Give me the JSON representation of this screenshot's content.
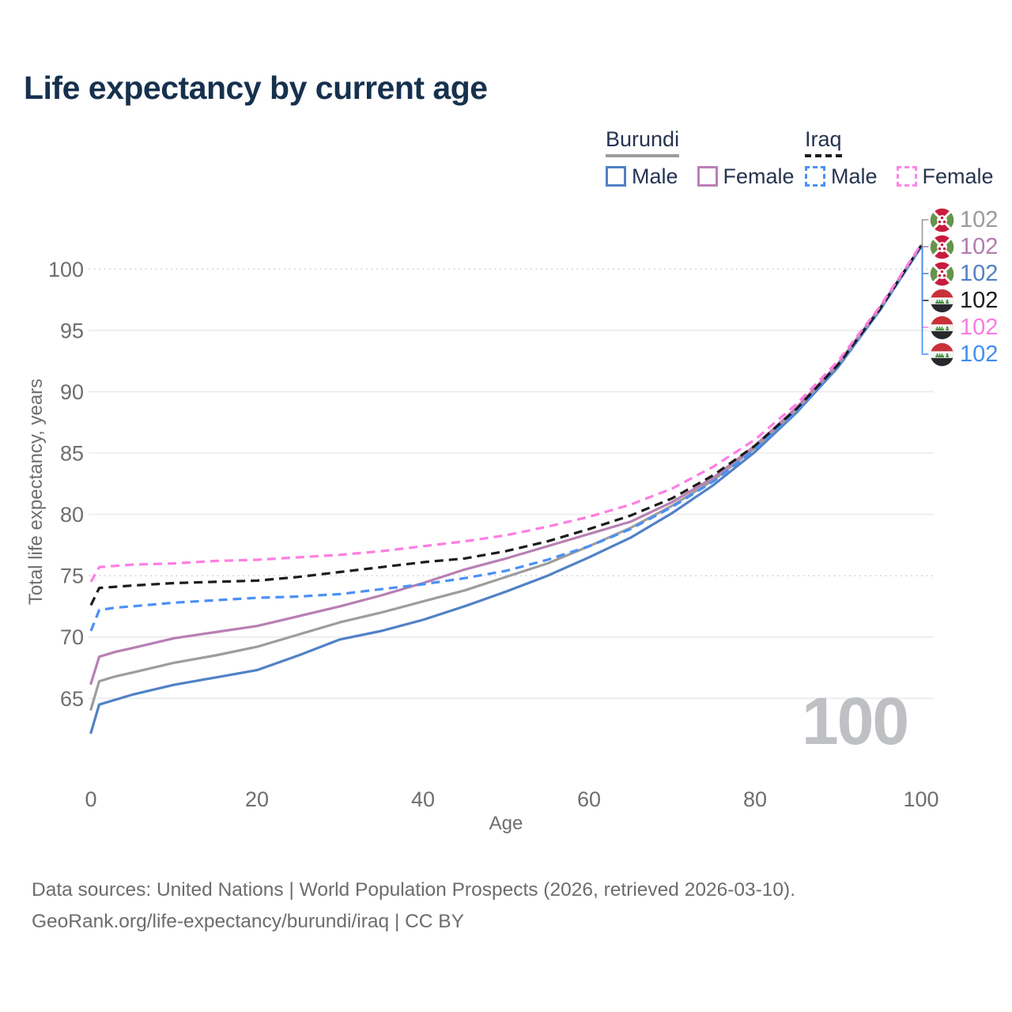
{
  "title": "Life expectancy by current age",
  "legend": {
    "groups": [
      {
        "country": "Burundi",
        "line_color": "#9d9d9d",
        "line_style": "solid",
        "items": [
          {
            "label": "Male",
            "color": "#5181c6",
            "dashed": false
          },
          {
            "label": "Female",
            "color": "#bb7fb8",
            "dashed": false
          }
        ]
      },
      {
        "country": "Iraq",
        "line_color": "#1c1c1c",
        "line_style": "dashed",
        "items": [
          {
            "label": "Male",
            "color": "#4a90f5",
            "dashed": true
          },
          {
            "label": "Female",
            "color": "#ff85e6",
            "dashed": true
          }
        ]
      }
    ]
  },
  "end_labels": [
    {
      "value": "102",
      "series": "Burundi Total",
      "flag": "burundi",
      "color": "#9a9a9a"
    },
    {
      "value": "102",
      "series": "Burundi Female",
      "flag": "burundi",
      "color": "#b27cae"
    },
    {
      "value": "102",
      "series": "Burundi Male",
      "flag": "burundi",
      "color": "#5180c4"
    },
    {
      "value": "102",
      "series": "Iraq Total",
      "flag": "iraq",
      "color": "#1c1c1c"
    },
    {
      "value": "102",
      "series": "Iraq Female",
      "flag": "iraq",
      "color": "#fb7be3"
    },
    {
      "value": "102",
      "series": "Iraq Male",
      "flag": "iraq",
      "color": "#408ef5"
    }
  ],
  "age_indicator": "100",
  "footer": {
    "line1": "Data sources: United Nations | World Population Prospects (2026, retrieved 2026-03-10).",
    "line2": "GeoRank.org/life-expectancy/burundi/iraq | CC BY"
  },
  "chart_data": {
    "type": "line",
    "title": "Life expectancy by current age",
    "xlabel": "Age",
    "ylabel": "Total life expectancy, years",
    "xlim": [
      0,
      100
    ],
    "ylim": [
      61.5,
      103.5
    ],
    "xticks": [
      0,
      20,
      40,
      60,
      80,
      100
    ],
    "yticks": [
      65,
      70,
      75,
      80,
      85,
      90,
      95,
      100
    ],
    "dotted_gridlines": [
      75,
      100
    ],
    "grid": "horizontal-only",
    "legend_position": "top-right",
    "x": [
      0,
      1,
      3,
      5,
      10,
      15,
      20,
      25,
      30,
      35,
      40,
      45,
      50,
      55,
      60,
      65,
      70,
      75,
      80,
      85,
      90,
      95,
      100
    ],
    "series": [
      {
        "name": "Burundi Male",
        "color": "#5181c6",
        "dash": "solid",
        "values": [
          62.2,
          64.5,
          64.9,
          65.3,
          66.1,
          66.7,
          67.3,
          68.5,
          69.8,
          70.5,
          71.4,
          72.5,
          73.7,
          75.0,
          76.5,
          78.1,
          80.1,
          82.4,
          85.1,
          88.3,
          92.0,
          96.6,
          101.8
        ]
      },
      {
        "name": "Burundi Total",
        "color": "#9d9d9d",
        "dash": "solid",
        "values": [
          64.1,
          66.4,
          66.8,
          67.1,
          67.9,
          68.5,
          69.2,
          70.2,
          71.2,
          72.0,
          72.9,
          73.8,
          74.9,
          76.0,
          77.4,
          78.9,
          80.7,
          82.8,
          85.4,
          88.5,
          92.2,
          96.7,
          101.9
        ]
      },
      {
        "name": "Burundi Female",
        "color": "#b77fb4",
        "dash": "solid",
        "values": [
          66.2,
          68.4,
          68.8,
          69.1,
          69.9,
          70.4,
          70.9,
          71.7,
          72.5,
          73.4,
          74.4,
          75.5,
          76.4,
          77.4,
          78.4,
          79.4,
          81.0,
          83.0,
          85.6,
          88.7,
          92.3,
          96.8,
          101.9
        ]
      },
      {
        "name": "Iraq Male",
        "color": "#4a90f5",
        "dash": "dashed",
        "values": [
          70.5,
          72.2,
          72.4,
          72.5,
          72.8,
          73.0,
          73.2,
          73.3,
          73.5,
          73.9,
          74.3,
          74.8,
          75.4,
          76.3,
          77.4,
          78.8,
          80.6,
          82.7,
          85.3,
          88.4,
          92.1,
          96.6,
          101.8
        ]
      },
      {
        "name": "Iraq Total",
        "color": "#1c1c1c",
        "dash": "dashed",
        "values": [
          72.6,
          74.0,
          74.1,
          74.2,
          74.4,
          74.5,
          74.6,
          74.9,
          75.3,
          75.7,
          76.1,
          76.4,
          77.0,
          77.8,
          78.8,
          79.9,
          81.3,
          83.2,
          85.6,
          88.6,
          92.2,
          96.7,
          101.9
        ]
      },
      {
        "name": "Iraq Female",
        "color": "#ff7de2",
        "dash": "dashed",
        "values": [
          74.5,
          75.7,
          75.8,
          75.9,
          76.0,
          76.2,
          76.3,
          76.5,
          76.7,
          77.0,
          77.4,
          77.8,
          78.3,
          79.0,
          79.8,
          80.8,
          82.1,
          83.9,
          86.1,
          89.0,
          92.5,
          96.9,
          102.0
        ]
      }
    ]
  }
}
